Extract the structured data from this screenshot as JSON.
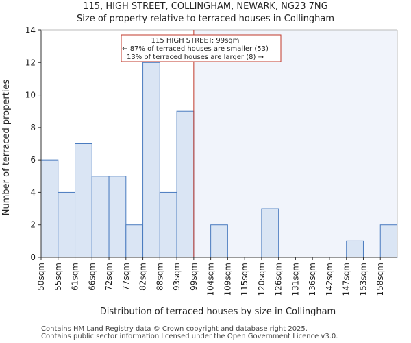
{
  "chart_data": {
    "type": "bar",
    "title": "115, HIGH STREET, COLLINGHAM, NEWARK, NG23 7NG",
    "subtitle": "Size of property relative to terraced houses in Collingham",
    "xlabel": "Distribution of terraced houses by size in Collingham",
    "ylabel": "Number of terraced properties",
    "categories": [
      "50sqm",
      "55sqm",
      "61sqm",
      "66sqm",
      "72sqm",
      "77sqm",
      "82sqm",
      "88sqm",
      "93sqm",
      "99sqm",
      "104sqm",
      "109sqm",
      "115sqm",
      "120sqm",
      "126sqm",
      "131sqm",
      "136sqm",
      "142sqm",
      "147sqm",
      "153sqm",
      "158sqm"
    ],
    "values": [
      6,
      4,
      7,
      5,
      5,
      2,
      12,
      4,
      9,
      0,
      2,
      0,
      0,
      3,
      0,
      0,
      0,
      0,
      1,
      0,
      2
    ],
    "ylim": [
      0,
      14
    ],
    "yticks": [
      0,
      2,
      4,
      6,
      8,
      10,
      12,
      14
    ],
    "marker_category": "99sqm",
    "annotation": {
      "line1": "115 HIGH STREET: 99sqm",
      "line2": "← 87% of terraced houses are smaller (53)",
      "line3": "13% of terraced houses are larger (8) →"
    },
    "colors": {
      "bar_fill": "#dae5f4",
      "bar_stroke": "#4a7bbf",
      "marker": "#c0392b",
      "highlight_bg": "#f1f4fb"
    }
  },
  "footer": {
    "line1": "Contains HM Land Registry data © Crown copyright and database right 2025.",
    "line2": "Contains public sector information licensed under the Open Government Licence v3.0."
  }
}
